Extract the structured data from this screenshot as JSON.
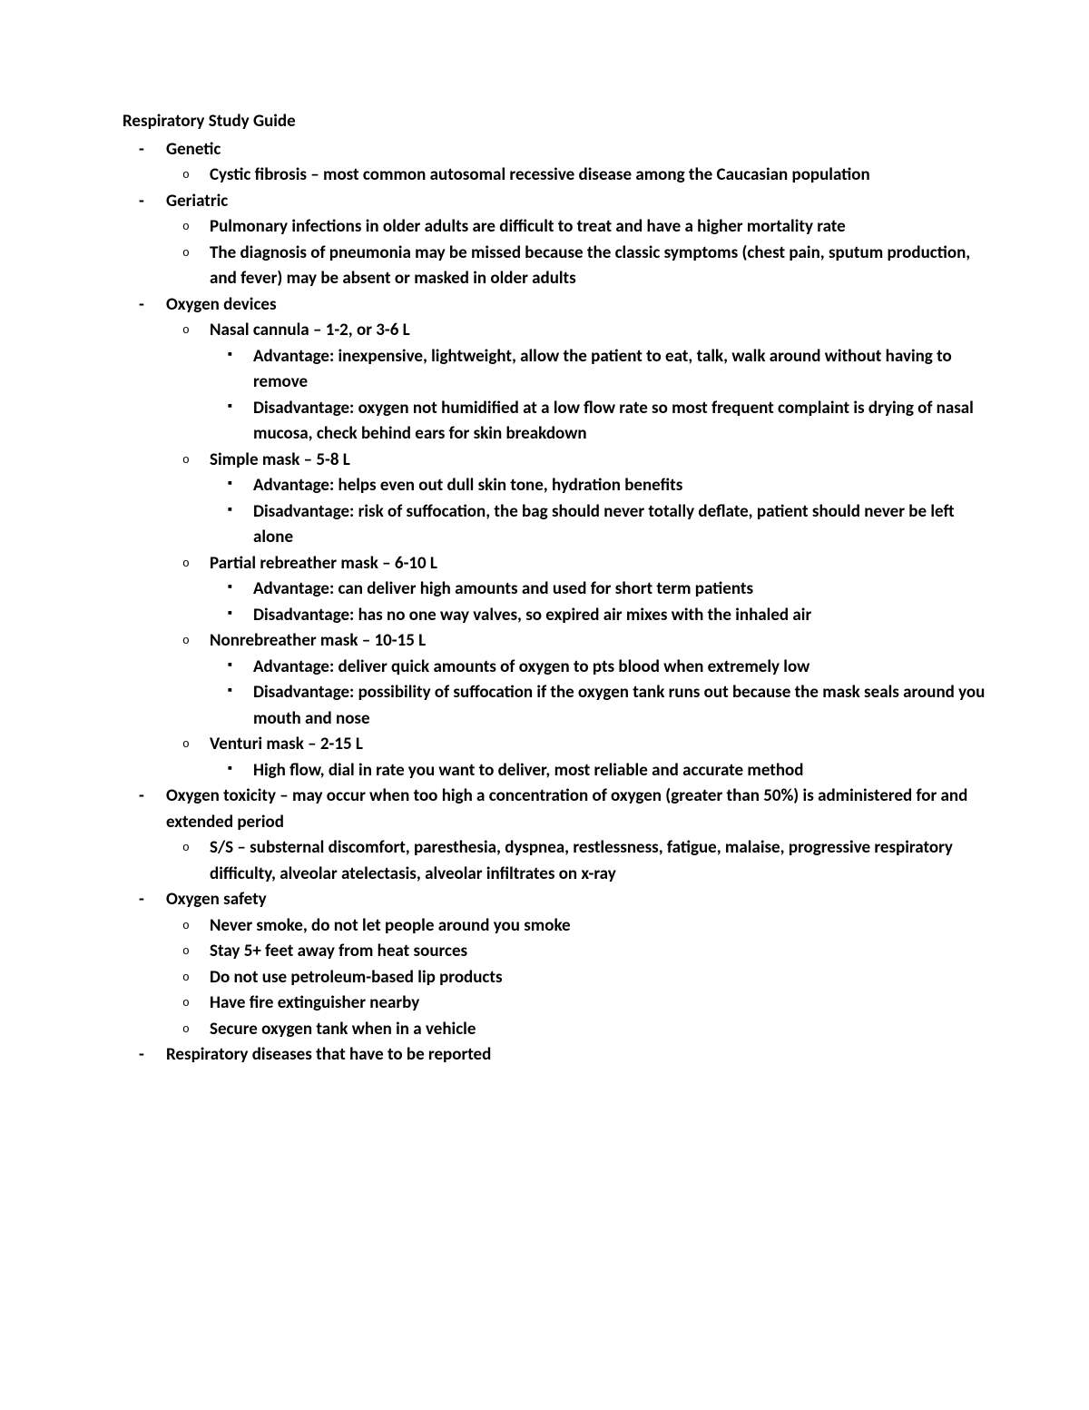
{
  "title": "Respiratory Study Guide",
  "sections": [
    {
      "heading": "Genetic",
      "items": [
        {
          "text": "Cystic fibrosis – most common autosomal recessive disease among the Caucasian population"
        }
      ]
    },
    {
      "heading": "Geriatric",
      "items": [
        {
          "text": "Pulmonary infections in older adults are difficult to treat and have a higher mortality rate"
        },
        {
          "text": "The diagnosis of pneumonia may be missed because the classic symptoms (chest pain, sputum production, and fever) may be absent or masked in older adults"
        }
      ]
    },
    {
      "heading": "Oxygen devices",
      "items": [
        {
          "text": "Nasal cannula – 1-2, or 3-6 L",
          "sub": [
            "Advantage: inexpensive, lightweight, allow the patient to eat, talk, walk around without having to remove",
            "Disadvantage: oxygen not humidified at a low flow rate so most frequent complaint is drying of nasal mucosa, check behind ears for skin breakdown"
          ]
        },
        {
          "text": "Simple mask – 5-8 L",
          "sub": [
            "Advantage: helps even out dull skin tone, hydration benefits",
            "Disadvantage: risk of suffocation, the bag should never totally deflate, patient should never be left alone"
          ]
        },
        {
          "text": "Partial rebreather mask – 6-10 L",
          "sub": [
            "Advantage: can deliver high amounts and used for short term patients",
            "Disadvantage: has no one way valves, so expired air mixes with the inhaled air"
          ]
        },
        {
          "text": "Nonrebreather mask – 10-15 L",
          "sub": [
            "Advantage: deliver quick amounts of oxygen to pts blood when extremely low",
            "Disadvantage: possibility of suffocation if the oxygen tank runs out because the mask seals around you mouth and nose"
          ]
        },
        {
          "text": "Venturi mask – 2-15 L",
          "sub": [
            "High flow, dial in rate you want to deliver, most reliable and accurate method"
          ]
        }
      ]
    },
    {
      "heading": "Oxygen toxicity – may occur when too high a concentration of oxygen (greater than 50%) is administered for and extended period",
      "items": [
        {
          "text": "S/S – substernal discomfort, paresthesia, dyspnea, restlessness, fatigue, malaise, progressive respiratory difficulty, alveolar atelectasis, alveolar infiltrates on x-ray"
        }
      ]
    },
    {
      "heading": "Oxygen safety",
      "items": [
        {
          "text": "Never smoke, do not let people around you smoke"
        },
        {
          "text": "Stay 5+ feet away from heat sources"
        },
        {
          "text": "Do not use petroleum-based lip products"
        },
        {
          "text": "Have fire extinguisher nearby"
        },
        {
          "text": "Secure oxygen tank when in a vehicle"
        }
      ]
    },
    {
      "heading": "Respiratory diseases that have to be reported",
      "items": []
    }
  ]
}
